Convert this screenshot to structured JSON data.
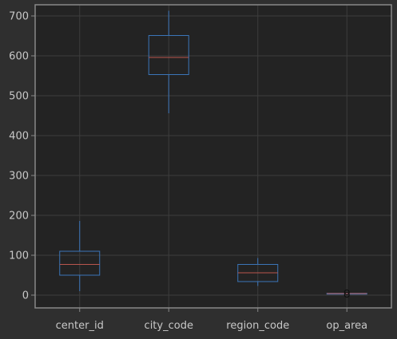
{
  "chart_data": {
    "type": "boxplot",
    "title": "",
    "xlabel": "",
    "ylabel": "",
    "ylim": [
      -32,
      728
    ],
    "y_ticks": [
      0,
      100,
      200,
      300,
      400,
      500,
      600,
      700
    ],
    "categories": [
      "center_id",
      "city_code",
      "region_code",
      "op_area"
    ],
    "boxes": [
      {
        "name": "center_id",
        "whisker_low": 10,
        "q1": 50,
        "median": 77,
        "q3": 110,
        "whisker_high": 186,
        "outliers": []
      },
      {
        "name": "city_code",
        "whisker_low": 456,
        "q1": 553,
        "median": 596,
        "q3": 651,
        "whisker_high": 713,
        "outliers": []
      },
      {
        "name": "region_code",
        "whisker_low": 23,
        "q1": 34,
        "median": 56,
        "q3": 77,
        "whisker_high": 93,
        "outliers": []
      },
      {
        "name": "op_area",
        "whisker_low": 1,
        "q1": 3,
        "median": 3.9,
        "q3": 4.5,
        "whisker_high": 6,
        "outliers": [
          0.9,
          7
        ]
      }
    ],
    "grid": true,
    "colors": {
      "background": "#2f2f2f",
      "plot_background": "#232323",
      "grid": "#3d3d3d",
      "frame": "#888888",
      "text": "#c8c8c8",
      "box": "#3b75b8",
      "median": "#b9554e",
      "outlier": "#101010"
    }
  }
}
